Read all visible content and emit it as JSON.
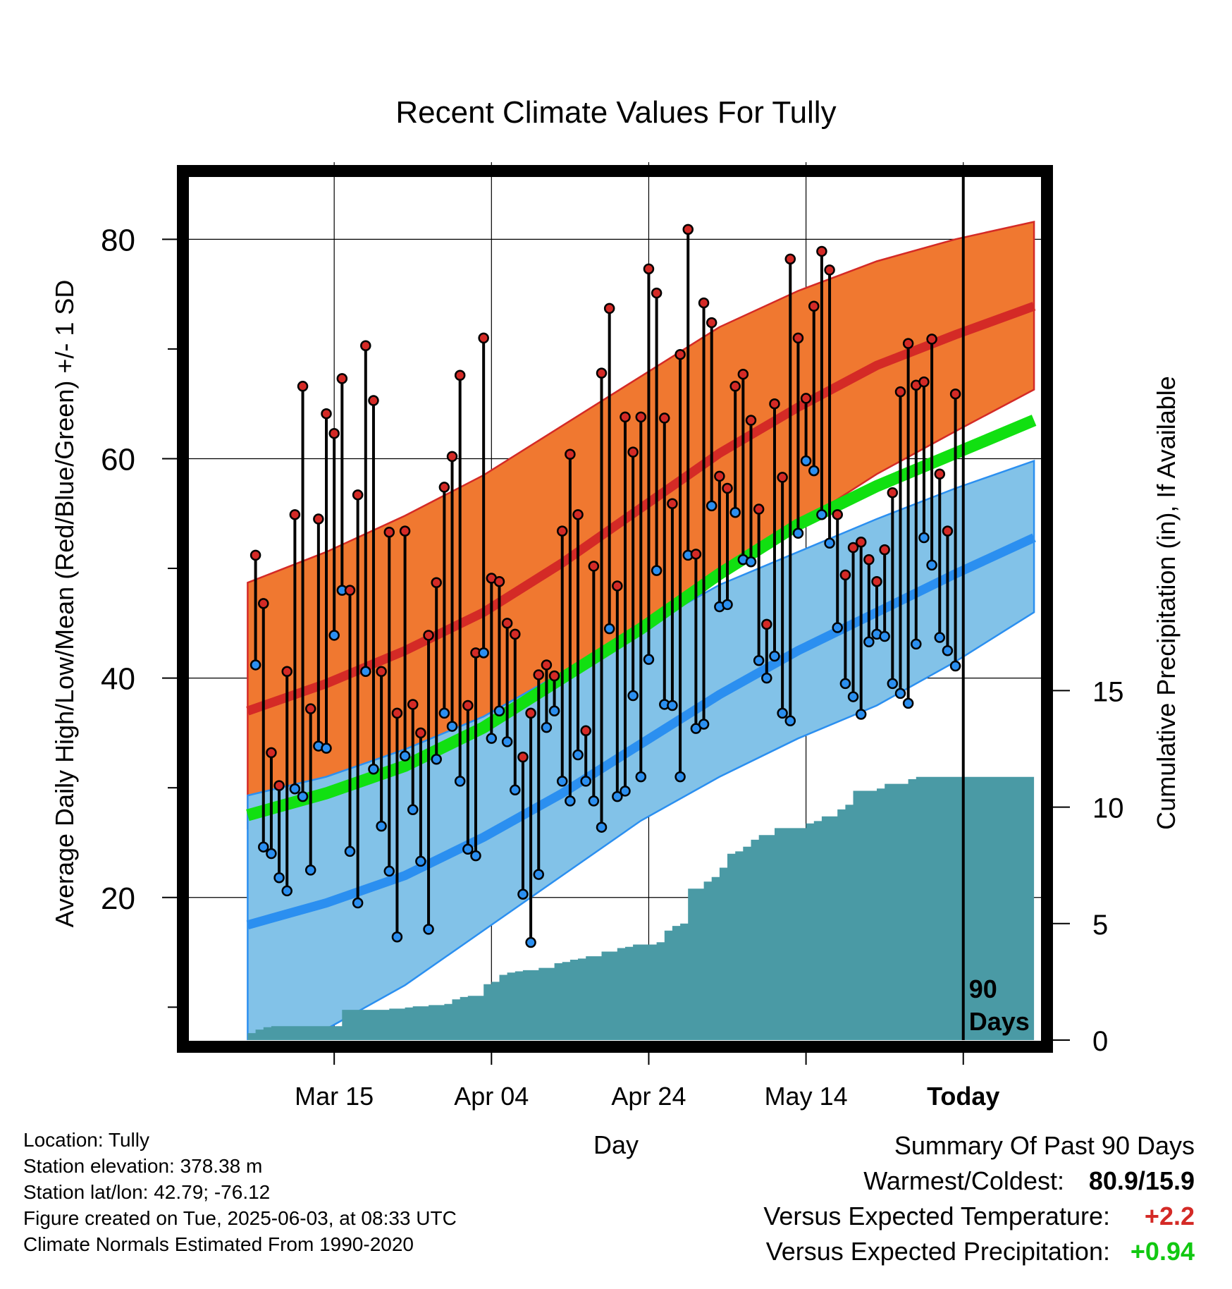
{
  "chart_data": {
    "type": "line",
    "title": "Recent Climate Values For Tully",
    "xlabel": "Day",
    "ylabel_left": "Average Daily High/Low/Mean (Red/Blue/Green) +/- 1 SD",
    "ylabel_right": "Cumulative Precipitation (in), If Available",
    "x_tick_labels": [
      "Mar 15",
      "Apr 04",
      "Apr 24",
      "May 14",
      "Today"
    ],
    "x_tick_days": [
      11,
      31,
      51,
      71,
      91
    ],
    "today_marker_label": [
      "90",
      "Days"
    ],
    "y_left_ticks": [
      20,
      40,
      60,
      80
    ],
    "y_left_range": [
      7,
      86
    ],
    "y_right_ticks": [
      0,
      5,
      10,
      15
    ],
    "y_right_range": [
      0,
      37.2
    ],
    "grid": true,
    "colors": {
      "high_band": "#f07830",
      "high_mean": "#d42a26",
      "low_band": "#82c2e8",
      "low_mean": "#2b8ff0",
      "mean_line": "#11e011",
      "precip": "#4a9aa5",
      "obs_high_point": "#d42a26",
      "obs_low_point": "#2b8ff0"
    },
    "normals_days": [
      0,
      10,
      20,
      30,
      40,
      50,
      60,
      70,
      80,
      90,
      100
    ],
    "normal_high": [
      37.0,
      39.5,
      42.5,
      46.0,
      50.5,
      55.5,
      60.5,
      64.7,
      68.5,
      71.3,
      73.9
    ],
    "normal_high_sd_upper": [
      48.7,
      51.5,
      54.8,
      58.5,
      63.0,
      67.5,
      72.0,
      75.3,
      78.0,
      80.0,
      81.6
    ],
    "normal_high_sd_lower": [
      26.3,
      28.5,
      31.5,
      34.8,
      38.5,
      43.5,
      49.0,
      54.0,
      58.6,
      62.5,
      66.3
    ],
    "normal_mean": [
      27.5,
      29.5,
      32.0,
      35.5,
      40.0,
      44.5,
      49.5,
      54.0,
      57.5,
      60.5,
      63.5
    ],
    "normal_low": [
      17.5,
      19.5,
      22.0,
      25.5,
      29.5,
      34.0,
      38.5,
      42.5,
      46.0,
      49.5,
      52.8
    ],
    "normal_low_sd_upper": [
      29.3,
      31.0,
      33.5,
      36.5,
      40.5,
      44.5,
      48.5,
      51.5,
      54.5,
      57.3,
      59.8
    ],
    "normal_low_sd_lower": [
      5.5,
      8.0,
      12.0,
      17.0,
      22.0,
      27.0,
      31.0,
      34.5,
      37.5,
      41.5,
      46.0
    ],
    "observed_days": [
      1,
      2,
      3,
      4,
      5,
      6,
      7,
      8,
      9,
      10,
      11,
      12,
      13,
      14,
      15,
      16,
      17,
      18,
      19,
      20,
      21,
      22,
      23,
      24,
      25,
      26,
      27,
      28,
      29,
      30,
      31,
      32,
      33,
      34,
      35,
      36,
      37,
      38,
      39,
      40,
      41,
      42,
      43,
      44,
      45,
      46,
      47,
      48,
      49,
      50,
      51,
      52,
      53,
      54,
      55,
      56,
      57,
      58,
      59,
      60,
      61,
      62,
      63,
      64,
      65,
      66,
      67,
      68,
      69,
      70,
      71,
      72,
      73,
      74,
      75,
      76,
      77,
      78,
      79,
      80,
      81,
      82,
      83,
      84,
      85,
      86,
      87,
      88,
      89,
      90
    ],
    "observed_high": [
      51.2,
      46.8,
      33.2,
      30.2,
      40.6,
      54.9,
      66.6,
      37.2,
      54.5,
      64.1,
      62.3,
      67.3,
      48.0,
      56.7,
      70.3,
      65.3,
      40.6,
      53.3,
      36.8,
      53.4,
      37.6,
      35.0,
      43.9,
      48.7,
      57.4,
      60.2,
      67.6,
      37.5,
      42.3,
      71.0,
      49.1,
      48.8,
      45.0,
      44.0,
      32.8,
      36.8,
      40.3,
      41.2,
      40.2,
      53.4,
      60.4,
      54.9,
      35.2,
      50.2,
      67.8,
      73.7,
      48.4,
      63.8,
      60.6,
      63.8,
      77.3,
      75.1,
      63.7,
      55.9,
      69.5,
      80.9,
      51.3,
      74.2,
      72.4,
      58.4,
      57.3,
      66.6,
      67.7,
      63.5,
      55.4,
      44.9,
      65.0,
      58.3,
      78.2,
      71.0,
      65.5,
      73.9,
      78.9,
      77.2,
      54.9,
      49.4,
      51.9,
      52.4,
      50.8,
      48.8,
      51.7,
      56.9,
      66.1,
      70.5,
      66.7,
      67.0,
      70.9,
      58.6,
      53.4,
      65.9
    ],
    "observed_low": [
      41.2,
      24.6,
      24.0,
      21.8,
      20.6,
      29.9,
      29.2,
      22.5,
      33.8,
      33.6,
      43.9,
      48.0,
      24.2,
      19.5,
      40.6,
      31.7,
      26.5,
      22.4,
      16.4,
      32.9,
      28.0,
      23.3,
      17.1,
      32.6,
      36.8,
      35.6,
      30.6,
      24.4,
      23.8,
      42.3,
      34.5,
      37.0,
      34.2,
      29.8,
      20.3,
      15.9,
      22.1,
      35.5,
      37.0,
      30.6,
      28.8,
      33.0,
      30.6,
      28.8,
      26.4,
      44.5,
      29.2,
      29.7,
      38.4,
      31.0,
      41.7,
      49.8,
      37.6,
      37.5,
      31.0,
      51.2,
      35.4,
      35.8,
      55.7,
      46.5,
      46.7,
      55.1,
      50.8,
      50.6,
      41.6,
      40.0,
      42.0,
      36.8,
      36.1,
      53.2,
      59.8,
      58.9,
      54.9,
      52.3,
      44.6,
      39.5,
      38.3,
      36.7,
      43.3,
      44.0,
      43.8,
      39.5,
      38.6,
      37.7,
      43.1,
      52.8,
      50.3,
      43.7,
      42.5,
      41.1
    ],
    "precip_days": [
      0,
      1,
      2,
      3,
      4,
      5,
      6,
      7,
      8,
      9,
      10,
      11,
      12,
      13,
      14,
      15,
      16,
      17,
      18,
      19,
      20,
      21,
      22,
      23,
      24,
      25,
      26,
      27,
      28,
      29,
      30,
      31,
      32,
      33,
      34,
      35,
      36,
      37,
      38,
      39,
      40,
      41,
      42,
      43,
      44,
      45,
      46,
      47,
      48,
      49,
      50,
      51,
      52,
      53,
      54,
      55,
      56,
      57,
      58,
      59,
      60,
      61,
      62,
      63,
      64,
      65,
      66,
      67,
      68,
      69,
      70,
      71,
      72,
      73,
      74,
      75,
      76,
      77,
      78,
      79,
      80,
      81,
      82,
      83,
      84,
      85,
      86,
      87,
      88,
      89,
      90,
      91,
      92,
      93,
      94,
      95,
      96,
      97,
      98,
      99,
      100
    ],
    "precip_cumulative": [
      0.3,
      0.45,
      0.55,
      0.6,
      0.6,
      0.6,
      0.6,
      0.6,
      0.6,
      0.6,
      0.6,
      0.6,
      1.3,
      1.3,
      1.3,
      1.3,
      1.3,
      1.3,
      1.35,
      1.35,
      1.4,
      1.45,
      1.45,
      1.5,
      1.5,
      1.55,
      1.75,
      1.85,
      1.9,
      1.9,
      2.4,
      2.5,
      2.8,
      2.9,
      2.95,
      3.0,
      3.0,
      3.1,
      3.1,
      3.3,
      3.35,
      3.45,
      3.5,
      3.6,
      3.6,
      3.8,
      3.8,
      3.95,
      4.0,
      4.1,
      4.1,
      4.1,
      4.2,
      4.7,
      4.9,
      5.0,
      6.5,
      6.5,
      6.8,
      7.0,
      7.4,
      8.0,
      8.1,
      8.3,
      8.6,
      8.8,
      8.8,
      9.1,
      9.1,
      9.1,
      9.1,
      9.3,
      9.4,
      9.6,
      9.6,
      9.9,
      10.1,
      10.7,
      10.7,
      10.7,
      10.8,
      11.0,
      11.0,
      11.0,
      11.2,
      11.3,
      11.3,
      11.3,
      11.3,
      11.3,
      11.3,
      11.3,
      11.3,
      11.3,
      11.3,
      11.3,
      11.3,
      11.3,
      11.3,
      11.3,
      11.3
    ]
  },
  "info": {
    "location": "Location: Tully",
    "elevation": "Station elevation: 378.38 m",
    "latlon": "Station lat/lon: 42.79; -76.12",
    "created": "Figure created on Tue, 2025-06-03, at 08:33 UTC",
    "normals": "Climate Normals Estimated From 1990-2020"
  },
  "summary": {
    "title": "Summary Of Past 90 Days",
    "warm_cold_label": "Warmest/Coldest:",
    "warm_cold_value": "80.9/15.9",
    "temp_label": "Versus Expected Temperature:",
    "temp_value": "+2.2",
    "temp_color": "#d42a26",
    "precip_label": "Versus Expected Precipitation:",
    "precip_value": "+0.94",
    "precip_color": "#11c811"
  }
}
